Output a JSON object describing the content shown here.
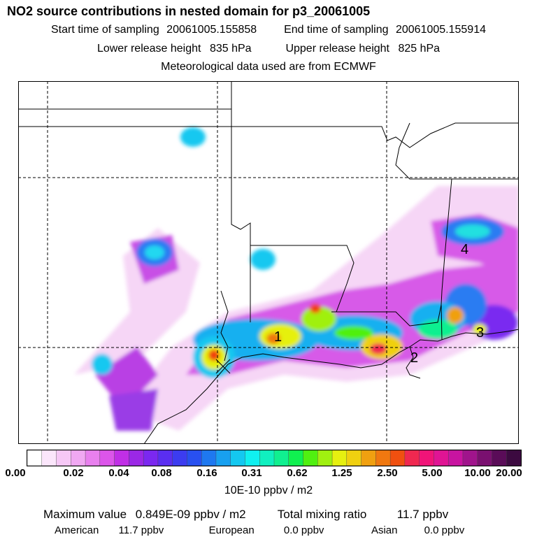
{
  "header": {
    "title": "NO2 source contributions in nested domain for p3_20061005",
    "start_label": "Start time of sampling",
    "start_value": "20061005.155858",
    "end_label": "End time of sampling",
    "end_value": "20061005.155914",
    "lower_label": "Lower release height",
    "lower_value": "835 hPa",
    "upper_label": "Upper release height",
    "upper_value": "825 hPa",
    "met_text": "Meteorological data used are from ECMWF"
  },
  "map": {
    "site_labels": [
      "1",
      "2",
      "3",
      "4"
    ],
    "colors": {
      "land_border": "#000000",
      "grid": "#000000"
    }
  },
  "colorbar": {
    "colors": [
      "#ffffff",
      "#fbe6fb",
      "#f6c8f6",
      "#f0a8f2",
      "#e880ee",
      "#dc55ea",
      "#c02fe6",
      "#9b28e6",
      "#7b28f0",
      "#5a2ef0",
      "#3c3cf0",
      "#2850f0",
      "#1e78f0",
      "#18a0f0",
      "#14c8f0",
      "#10f0f0",
      "#10f0c0",
      "#10f090",
      "#10f050",
      "#50f010",
      "#a0f010",
      "#e6f010",
      "#f0d010",
      "#f0a010",
      "#f07810",
      "#f05010",
      "#f02850",
      "#f01478",
      "#e01494",
      "#c814a0",
      "#a0148c",
      "#7a1070",
      "#5a0c58",
      "#3c0a40"
    ],
    "ticks": [
      "0.00",
      "0.02",
      "0.04",
      "0.08",
      "0.16",
      "0.31",
      "0.62",
      "1.25",
      "2.50",
      "5.00",
      "10.00",
      "20.00"
    ],
    "units": "10E-10 ppbv / m2"
  },
  "footer": {
    "max_label": "Maximum value",
    "max_value": "0.849E-09 ppbv / m2",
    "total_label": "Total mixing ratio",
    "total_value": "11.7 ppbv",
    "sources": [
      {
        "name": "American",
        "value": "11.7 ppbv"
      },
      {
        "name": "European",
        "value": "0.0 ppbv"
      },
      {
        "name": "Asian",
        "value": "0.0 ppbv"
      }
    ]
  }
}
